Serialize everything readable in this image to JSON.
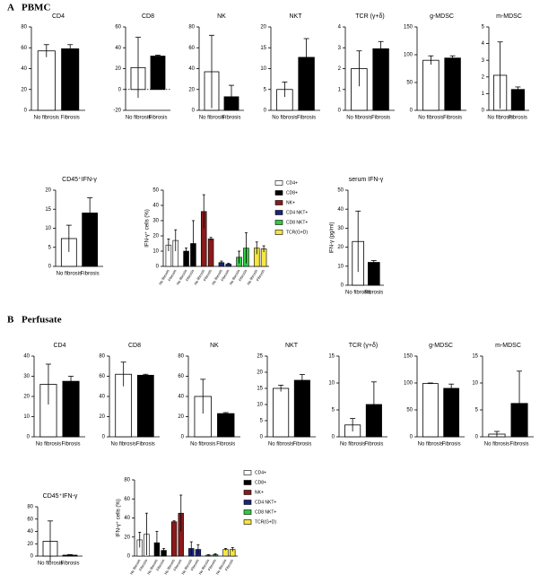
{
  "sections": [
    {
      "letter": "A",
      "title": "PBMC"
    },
    {
      "letter": "B",
      "title": "Perfusate"
    }
  ],
  "chart_data": [
    {
      "type": "bar",
      "title": "CD4",
      "categories": [
        "No fibrosis",
        "Fibrosis"
      ],
      "values": [
        57,
        59
      ],
      "errors": [
        6,
        4
      ],
      "colors": [
        "#ffffff",
        "#000000"
      ],
      "ylim": [
        0,
        80
      ],
      "yticks": [
        0,
        20,
        40,
        60,
        80
      ]
    },
    {
      "type": "bar",
      "title": "CD8",
      "categories": [
        "No fibrosis",
        "Fibrosis"
      ],
      "values": [
        21,
        32
      ],
      "errors": [
        29,
        1
      ],
      "colors": [
        "#ffffff",
        "#000000"
      ],
      "ylim": [
        -20,
        60
      ],
      "yticks": [
        -20,
        0,
        20,
        40,
        60
      ]
    },
    {
      "type": "bar",
      "title": "NK",
      "categories": [
        "No fibrosis",
        "Fibrosis"
      ],
      "values": [
        37,
        13
      ],
      "errors": [
        35,
        11
      ],
      "colors": [
        "#ffffff",
        "#000000"
      ],
      "ylim": [
        0,
        80
      ],
      "yticks": [
        0,
        20,
        40,
        60,
        80
      ]
    },
    {
      "type": "bar",
      "title": "NKT",
      "categories": [
        "No fibrosis",
        "Fibrosis"
      ],
      "values": [
        5,
        12.7
      ],
      "errors": [
        1.8,
        4.5
      ],
      "colors": [
        "#ffffff",
        "#000000"
      ],
      "ylim": [
        0,
        20
      ],
      "yticks": [
        0,
        5,
        10,
        15,
        20
      ]
    },
    {
      "type": "bar",
      "title": "TCR (γ+δ)",
      "categories": [
        "No fibrosis",
        "Fibrosis"
      ],
      "values": [
        2.0,
        2.95
      ],
      "errors": [
        0.85,
        0.35
      ],
      "colors": [
        "#ffffff",
        "#000000"
      ],
      "ylim": [
        0,
        4
      ],
      "yticks": [
        0,
        1,
        2,
        3,
        4
      ]
    },
    {
      "type": "bar",
      "title": "g-MDSC",
      "categories": [
        "No fibrosis",
        "Fibrosis"
      ],
      "values": [
        90,
        94
      ],
      "errors": [
        8,
        4
      ],
      "colors": [
        "#ffffff",
        "#000000"
      ],
      "ylim": [
        0,
        150
      ],
      "yticks": [
        0,
        50,
        100,
        150
      ]
    },
    {
      "type": "bar",
      "title": "m-MDSC",
      "categories": [
        "No fibrosis",
        "Fibrosis"
      ],
      "values": [
        2.1,
        1.25
      ],
      "errors": [
        2.0,
        0.15
      ],
      "colors": [
        "#ffffff",
        "#000000"
      ],
      "ylim": [
        0,
        5
      ],
      "yticks": [
        0,
        1,
        2,
        3,
        4,
        5
      ]
    },
    {
      "type": "bar",
      "title": "CD45⁺IFN-γ",
      "categories": [
        "No fibrosis",
        "Fibrosis"
      ],
      "values": [
        7.3,
        14
      ],
      "errors": [
        3.5,
        4
      ],
      "colors": [
        "#ffffff",
        "#000000"
      ],
      "ylim": [
        0,
        20
      ],
      "yticks": [
        0,
        5,
        10,
        15,
        20
      ]
    },
    {
      "type": "grouped_bar",
      "ylabel": "IFN-γ⁺ cells (%)",
      "groups": [
        "No fibrosis",
        "Fibrosis"
      ],
      "ylim": [
        0,
        50
      ],
      "yticks": [
        0,
        10,
        20,
        30,
        40,
        50
      ],
      "series": [
        {
          "name": "CD4+",
          "color": "#ffffff",
          "values": [
            14,
            17
          ],
          "errors": [
            4,
            7
          ]
        },
        {
          "name": "CD8+",
          "color": "#000000",
          "values": [
            10,
            15
          ],
          "errors": [
            2,
            15
          ]
        },
        {
          "name": "NK+",
          "color": "#8b1a1a",
          "values": [
            36,
            18
          ],
          "errors": [
            11,
            1
          ]
        },
        {
          "name": "CD4 NKT+",
          "color": "#1a237e",
          "values": [
            2.5,
            1.5
          ],
          "errors": [
            1,
            0.5
          ]
        },
        {
          "name": "CD8 NKT+",
          "color": "#2ecc40",
          "values": [
            6,
            12
          ],
          "errors": [
            4,
            10
          ]
        },
        {
          "name": "TCR(G+D)",
          "color": "#f5e642",
          "values": [
            12,
            11.5
          ],
          "errors": [
            4,
            2
          ]
        }
      ]
    },
    {
      "type": "bar",
      "title": "serum IFN-γ",
      "ylabel": "IFN-γ (pg/ml)",
      "categories": [
        "No fibrosis",
        "Fibrosis"
      ],
      "values": [
        23,
        12
      ],
      "errors": [
        16,
        1
      ],
      "colors": [
        "#ffffff",
        "#000000"
      ],
      "ylim": [
        0,
        50
      ],
      "yticks": [
        0,
        10,
        20,
        30,
        40,
        50
      ]
    },
    {
      "type": "bar",
      "title": "CD4",
      "categories": [
        "No fibrosis",
        "Fibrosis"
      ],
      "values": [
        26,
        27.5
      ],
      "errors": [
        10,
        2.5
      ],
      "colors": [
        "#ffffff",
        "#000000"
      ],
      "ylim": [
        0,
        40
      ],
      "yticks": [
        0,
        10,
        20,
        30,
        40
      ]
    },
    {
      "type": "bar",
      "title": "CD8",
      "categories": [
        "No fibrosis",
        "Fibrosis"
      ],
      "values": [
        62,
        61
      ],
      "errors": [
        12,
        1
      ],
      "colors": [
        "#ffffff",
        "#000000"
      ],
      "ylim": [
        0,
        80
      ],
      "yticks": [
        0,
        20,
        40,
        60,
        80
      ]
    },
    {
      "type": "bar",
      "title": "NK",
      "categories": [
        "No fibrosis",
        "Fibrosis"
      ],
      "values": [
        40,
        23
      ],
      "errors": [
        17,
        1
      ],
      "colors": [
        "#ffffff",
        "#000000"
      ],
      "ylim": [
        0,
        80
      ],
      "yticks": [
        0,
        20,
        40,
        60,
        80
      ]
    },
    {
      "type": "bar",
      "title": "NKT",
      "categories": [
        "No fibrosis",
        "Fibrosis"
      ],
      "values": [
        15,
        17.5
      ],
      "errors": [
        1,
        1.8
      ],
      "colors": [
        "#ffffff",
        "#000000"
      ],
      "ylim": [
        0,
        25
      ],
      "yticks": [
        0,
        5,
        10,
        15,
        20,
        25
      ]
    },
    {
      "type": "bar",
      "title": "TCR (γ+δ)",
      "categories": [
        "No fibrosis",
        "Fibrosis"
      ],
      "values": [
        2.2,
        6
      ],
      "errors": [
        1.2,
        4.2
      ],
      "colors": [
        "#ffffff",
        "#000000"
      ],
      "ylim": [
        0,
        15
      ],
      "yticks": [
        0,
        5,
        10,
        15
      ]
    },
    {
      "type": "bar",
      "title": "g-MDSC",
      "categories": [
        "No fibrosis",
        "Fibrosis"
      ],
      "values": [
        99,
        90
      ],
      "errors": [
        1,
        8
      ],
      "colors": [
        "#ffffff",
        "#000000"
      ],
      "ylim": [
        0,
        150
      ],
      "yticks": [
        0,
        50,
        100,
        150
      ]
    },
    {
      "type": "bar",
      "title": "m-MDSC",
      "categories": [
        "No fibrosis",
        "Fibrosis"
      ],
      "values": [
        0.5,
        6.2
      ],
      "errors": [
        0.5,
        6
      ],
      "colors": [
        "#ffffff",
        "#000000"
      ],
      "ylim": [
        0,
        15
      ],
      "yticks": [
        0,
        5,
        10,
        15
      ]
    },
    {
      "type": "bar",
      "title": "CD45⁺IFN-γ",
      "categories": [
        "No fibrosis",
        "Fibrosis"
      ],
      "values": [
        24,
        1.5
      ],
      "errors": [
        33,
        1
      ],
      "colors": [
        "#ffffff",
        "#000000"
      ],
      "ylim": [
        0,
        80
      ],
      "yticks": [
        0,
        20,
        40,
        60,
        80
      ]
    },
    {
      "type": "grouped_bar",
      "ylabel": "IFN-γ⁺ cells (%)",
      "groups": [
        "No fibrosis",
        "Fibrosis"
      ],
      "ylim": [
        0,
        80
      ],
      "yticks": [
        0,
        20,
        40,
        60,
        80
      ],
      "series": [
        {
          "name": "CD4+",
          "color": "#ffffff",
          "values": [
            17,
            23
          ],
          "errors": [
            8,
            22
          ]
        },
        {
          "name": "CD8+",
          "color": "#000000",
          "values": [
            14,
            6
          ],
          "errors": [
            12,
            2
          ]
        },
        {
          "name": "NK+",
          "color": "#8b1a1a",
          "values": [
            36,
            45
          ],
          "errors": [
            1,
            19
          ]
        },
        {
          "name": "CD4 NKT+",
          "color": "#1a237e",
          "values": [
            8,
            7
          ],
          "errors": [
            7,
            5
          ]
        },
        {
          "name": "CD8 NKT+",
          "color": "#2ecc40",
          "values": [
            1,
            1.5
          ],
          "errors": [
            0.5,
            1
          ]
        },
        {
          "name": "TCR(G+D)",
          "color": "#f5e642",
          "values": [
            7,
            7
          ],
          "errors": [
            1,
            2
          ]
        }
      ]
    }
  ]
}
